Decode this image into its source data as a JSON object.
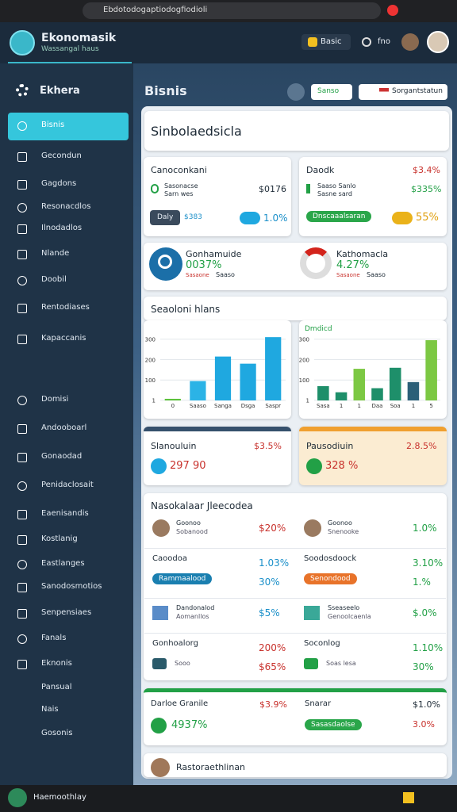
{
  "browser": {
    "url": "Ebdotodogaptiodogfiodioli"
  },
  "header": {
    "title": "Ekonomasik",
    "subtitle": "Wassangal haus",
    "badge": "Basic",
    "menu": "fno"
  },
  "sidebar": {
    "brand": "Ekhera",
    "items": [
      "Bisnis",
      "Gecondun",
      "Gagdons",
      "Resonacdlos",
      "Ilnodadlos",
      "Nlande",
      "Doobil",
      "Rentodiases",
      "Kapaccanis",
      "Domisi",
      "Andooboarl",
      "Gonaodad",
      "Penidaclosait",
      "Eaenisandis",
      "Kostlanig",
      "Eastlanges",
      "Sanodosmotios",
      "Senpensiaes",
      "Fanals",
      "Eknonis",
      "Pansual",
      "Nais",
      "Gosonis"
    ]
  },
  "main": {
    "title": "Bisnis",
    "button1": "Sanso",
    "button2": "Sorgantstatun",
    "panel_title": "Sinbolaedsicla",
    "section_title": "Seaoloni hlans"
  },
  "cards": [
    {
      "title": "Canoconkani",
      "sub": "Sasonacse",
      "sub2": "Sarn wes",
      "amount": "$0176",
      "button": "Daly",
      "link": "$383",
      "pct": "1.0%"
    },
    {
      "title": "Daodk",
      "top": "$3.4%",
      "sub": "Saaso Sanlo",
      "sub2": "Sasne sard",
      "amount": "$335%",
      "button": "Dnscaaalsaran",
      "pct": "55%"
    }
  ],
  "metrics": [
    {
      "title": "Gonhamuide",
      "value": "0037%",
      "sub": "Sasaone",
      "sub2": "Saaso"
    },
    {
      "title": "Kathomacla",
      "value": "4.27%",
      "sub": "Sasaone",
      "sub2": "Saaso"
    }
  ],
  "summary": [
    {
      "title": "Slanouluin",
      "top": "$3.5%",
      "value": "297 90"
    },
    {
      "title": "Pausodiuin",
      "top": "2.8.5%",
      "value": "328 %"
    }
  ],
  "list": {
    "title": "Nasokalaar Jleecodea",
    "items": [
      {
        "label": "Goonoo",
        "sub": "Sobanood",
        "value": "$20%",
        "color": "#c8312c"
      },
      {
        "label": "Goonoo",
        "sub": "Snenooke",
        "value": "1.0%",
        "color": "#22a046"
      },
      {
        "label": "Caoodoa",
        "tag": "Rammaalood",
        "value": "1.03%",
        "value2": "30%",
        "color": "#1a8fc9"
      },
      {
        "label": "Soodosdoock",
        "tag": "Senondood",
        "value": "3.10%",
        "value2": "1.%",
        "color": "#22a046"
      },
      {
        "label": "Dandonalod",
        "sub": "Aomanllos",
        "value": "$5%",
        "color": "#1a8fc9"
      },
      {
        "label": "Sseaseelo",
        "sub": "Genoolcaenla",
        "value": "$.0%",
        "color": "#22a046"
      },
      {
        "label": "Gonhoalorg",
        "sub": "Sooo",
        "value": "200%",
        "value2": "$65%",
        "color": "#c8312c"
      },
      {
        "label": "Soconlog",
        "sub": "Soas lesa",
        "value": "1.10%",
        "value2": "30%",
        "color": "#22a046"
      }
    ]
  },
  "footer_card": {
    "left": "Darloe Granile",
    "left_top": "$3.9%",
    "left_value": "4937%",
    "right": "Snarar",
    "right_top": "$1.0%",
    "right_button": "Sasasdaolse",
    "right_value": "3.0%"
  },
  "last_row": {
    "title": "Rastoraethlinan"
  },
  "taskbar": {
    "title": "Haemoothlay"
  },
  "chart_data": [
    {
      "type": "bar",
      "categories": [
        "0",
        "Saaso",
        "Sanga",
        "Dsga",
        "Saspr"
      ],
      "values": [
        8,
        95,
        215,
        180,
        310
      ],
      "colors": [
        "#5cc13b",
        "#2bb3e6",
        "#1fa8e0",
        "#1fa8e0",
        "#1fa8e0"
      ],
      "ylim": [
        0,
        330
      ],
      "yticks": [
        1,
        100,
        200,
        300
      ]
    },
    {
      "type": "bar",
      "title": "Dmdicd",
      "categories": [
        "Sasa",
        "1",
        "1",
        "Daa",
        "Soa",
        "1",
        "5"
      ],
      "values": [
        70,
        40,
        155,
        60,
        160,
        90,
        295
      ],
      "colors": [
        "#1e8f6a",
        "#1e8f6a",
        "#7cc843",
        "#1e8f6a",
        "#1e8f6a",
        "#2b5f78",
        "#7cc843"
      ],
      "ylim": [
        0,
        330
      ],
      "yticks": [
        1,
        100,
        200,
        300
      ]
    }
  ]
}
